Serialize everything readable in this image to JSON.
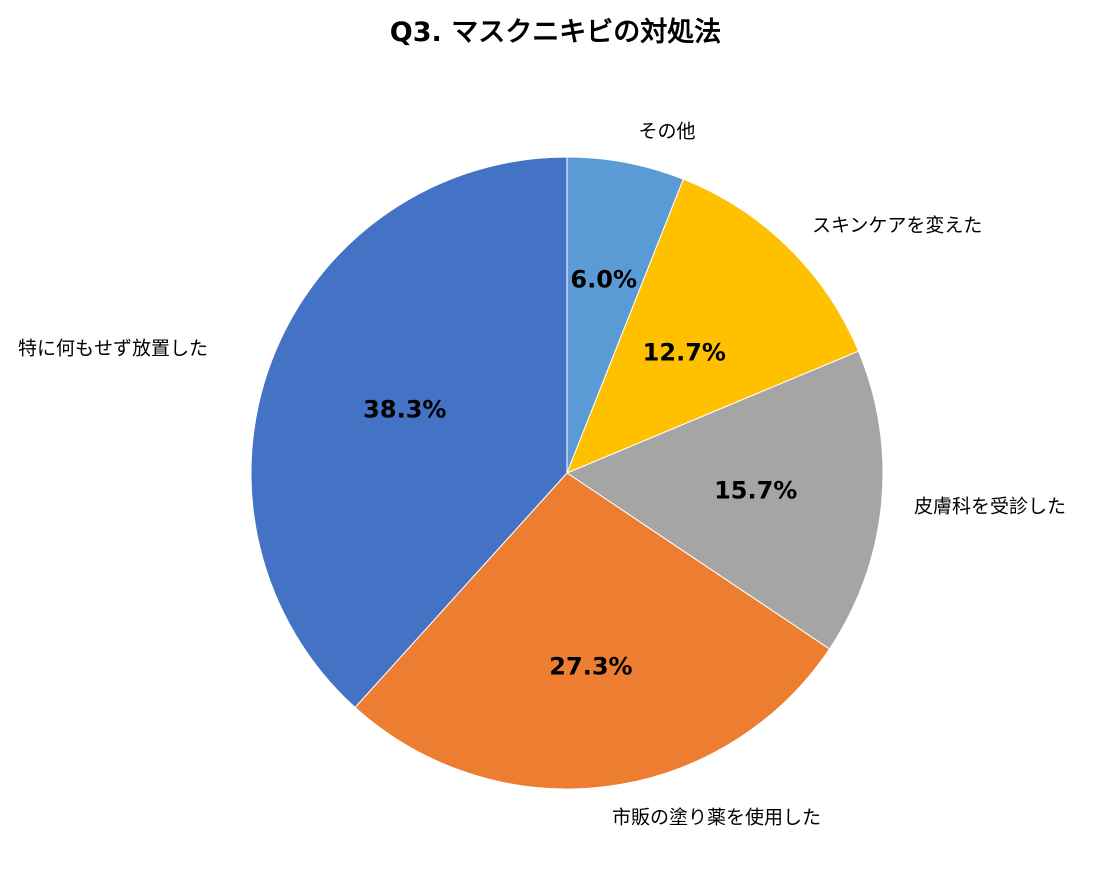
{
  "chart_data": {
    "type": "pie",
    "title": "Q3. マスクニキビの対処法",
    "categories": [
      "その他",
      "スキンケアを変えた",
      "皮膚科を受診した",
      "市販の塗り薬を使用した",
      "特に何もせず放置した"
    ],
    "values": [
      6.0,
      12.7,
      15.7,
      27.3,
      38.3
    ],
    "value_labels": [
      "6.0%",
      "12.7%",
      "15.7%",
      "27.3%",
      "38.3%"
    ],
    "colors": [
      "#5B9BD5",
      "#FFC000",
      "#A5A5A5",
      "#ED7D31",
      "#4472C4"
    ],
    "start": "12 o'clock",
    "direction": "clockwise",
    "legend": "none"
  }
}
